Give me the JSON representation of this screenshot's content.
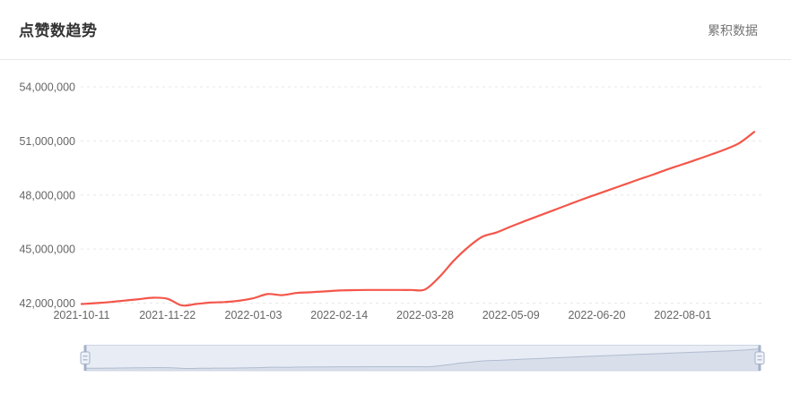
{
  "header": {
    "title": "点赞数趋势",
    "mode_label": "累积数据"
  },
  "colors": {
    "line": "#f4564a",
    "grid_line": "#e7e7e7",
    "axis_label": "#666666",
    "title_text": "#333333",
    "mode_label_text": "#757575",
    "header_divider": "#e8e8e8",
    "slider_bg": "#e8ecf4",
    "slider_border": "#ccd4e3",
    "slider_shadow_fill": "#d8dfeb",
    "slider_shadow_line": "#b0bccf",
    "slider_handle": "#a3b1c9",
    "slider_grip_fill": "#eef1f7"
  },
  "chart_data": {
    "type": "line",
    "title": "点赞数趋势",
    "legend": [
      "累积数据"
    ],
    "legend_position": "top-right",
    "grid": "horizontal-dashed",
    "has_datazoom_slider": true,
    "xlabel": "",
    "ylabel": "",
    "ylim": [
      42000000,
      54000000
    ],
    "y_ticks": [
      42000000,
      45000000,
      48000000,
      51000000,
      54000000
    ],
    "y_tick_labels": [
      "42,000,000",
      "45,000,000",
      "48,000,000",
      "51,000,000",
      "54,000,000"
    ],
    "x_tick_indices": [
      0,
      6,
      12,
      18,
      24,
      30,
      36,
      42
    ],
    "x_tick_labels": [
      "2021-10-11",
      "2021-11-22",
      "2022-01-03",
      "2022-02-14",
      "2022-03-28",
      "2022-05-09",
      "2022-06-20",
      "2022-08-01"
    ],
    "x": [
      "2021-10-11",
      "2021-10-18",
      "2021-10-25",
      "2021-11-01",
      "2021-11-08",
      "2021-11-15",
      "2021-11-22",
      "2021-11-29",
      "2021-12-06",
      "2021-12-13",
      "2021-12-20",
      "2021-12-27",
      "2022-01-03",
      "2022-01-10",
      "2022-01-17",
      "2022-01-24",
      "2022-01-31",
      "2022-02-07",
      "2022-02-14",
      "2022-02-21",
      "2022-02-28",
      "2022-03-07",
      "2022-03-14",
      "2022-03-21",
      "2022-03-28",
      "2022-04-04",
      "2022-04-11",
      "2022-04-18",
      "2022-04-25",
      "2022-05-02",
      "2022-05-09",
      "2022-05-16",
      "2022-05-23",
      "2022-05-30",
      "2022-06-06",
      "2022-06-13",
      "2022-06-20",
      "2022-06-27",
      "2022-07-04",
      "2022-07-11",
      "2022-07-18",
      "2022-07-25",
      "2022-08-01",
      "2022-08-08",
      "2022-08-15",
      "2022-08-22",
      "2022-08-29",
      "2022-09-05"
    ],
    "series": [
      {
        "name": "累积数据",
        "values": [
          41950000,
          42000000,
          42060000,
          42140000,
          42220000,
          42300000,
          42240000,
          41870000,
          41950000,
          42030000,
          42060000,
          42130000,
          42270000,
          42500000,
          42440000,
          42560000,
          42600000,
          42650000,
          42700000,
          42720000,
          42730000,
          42730000,
          42730000,
          42730000,
          42760000,
          43450000,
          44350000,
          45100000,
          45680000,
          45920000,
          46250000,
          46560000,
          46860000,
          47160000,
          47460000,
          47760000,
          48040000,
          48320000,
          48600000,
          48880000,
          49150000,
          49440000,
          49700000,
          49970000,
          50250000,
          50540000,
          50900000,
          51500000
        ]
      }
    ]
  }
}
